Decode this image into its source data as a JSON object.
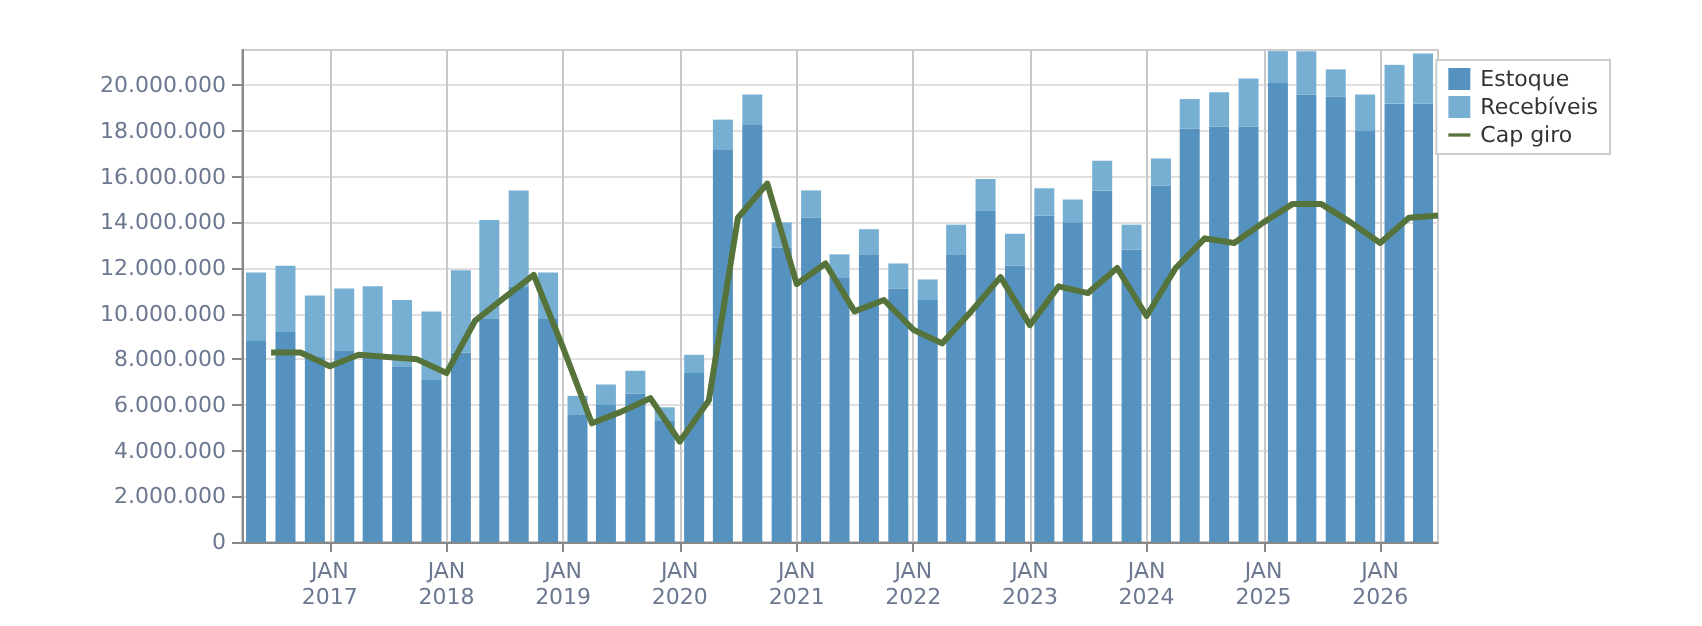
{
  "chart_data": {
    "type": "bar",
    "stacked": true,
    "x": [
      "2016-05-15",
      "2016-08-15",
      "2016-11-15",
      "2017-02-15",
      "2017-05-15",
      "2017-08-15",
      "2017-11-15",
      "2018-02-15",
      "2018-05-15",
      "2018-08-15",
      "2018-11-15",
      "2019-02-15",
      "2019-05-15",
      "2019-08-15",
      "2019-11-15",
      "2020-02-15",
      "2020-05-15",
      "2020-08-15",
      "2020-11-15",
      "2021-02-15",
      "2021-05-15",
      "2021-08-15",
      "2021-11-15",
      "2022-02-15",
      "2022-05-15",
      "2022-08-15",
      "2022-11-15",
      "2023-02-15",
      "2023-05-15",
      "2023-08-15",
      "2023-11-15",
      "2024-02-15",
      "2024-05-15",
      "2024-08-15",
      "2024-11-15",
      "2025-02-15",
      "2025-05-15",
      "2025-08-15",
      "2025-11-15",
      "2026-02-15",
      "2026-05-15"
    ],
    "series": [
      {
        "name": "Estoque",
        "color": "#5592bf",
        "values": [
          8800000,
          9200000,
          8100000,
          8400000,
          8100000,
          7700000,
          7100000,
          8300000,
          9800000,
          11200000,
          9800000,
          5600000,
          6000000,
          6500000,
          5300000,
          7400000,
          17200000,
          18300000,
          12900000,
          14200000,
          11600000,
          12600000,
          11100000,
          10600000,
          12600000,
          14500000,
          12100000,
          14300000,
          14000000,
          15400000,
          12800000,
          15600000,
          18100000,
          18200000,
          18200000,
          20100000,
          19600000,
          19500000,
          18000000,
          19200000,
          19200000
        ]
      },
      {
        "name": "Recebíveis",
        "color": "#77afd3",
        "values": [
          3000000,
          2900000,
          2700000,
          2700000,
          3100000,
          2900000,
          3000000,
          3600000,
          4300000,
          4200000,
          2000000,
          800000,
          900000,
          1000000,
          600000,
          800000,
          1300000,
          1300000,
          1100000,
          1200000,
          1000000,
          1100000,
          1100000,
          900000,
          1300000,
          1400000,
          1400000,
          1200000,
          1000000,
          1300000,
          1100000,
          1200000,
          1300000,
          1500000,
          2100000,
          1400000,
          1900000,
          1200000,
          1600000,
          1700000,
          2200000
        ]
      },
      {
        "name": "Cap giro",
        "type": "line",
        "color": "#56733b",
        "line_style": "solid",
        "marker": "none",
        "x": [
          "2016-07-01",
          "2016-10-01",
          "2017-01-01",
          "2017-04-01",
          "2017-07-01",
          "2017-10-01",
          "2018-01-01",
          "2018-04-01",
          "2018-07-01",
          "2018-10-01",
          "2019-01-01",
          "2019-04-01",
          "2019-07-01",
          "2019-10-01",
          "2020-01-01",
          "2020-04-01",
          "2020-07-01",
          "2020-10-01",
          "2021-01-01",
          "2021-04-01",
          "2021-07-01",
          "2021-10-01",
          "2022-01-01",
          "2022-04-01",
          "2022-07-01",
          "2022-10-01",
          "2023-01-01",
          "2023-04-01",
          "2023-07-01",
          "2023-10-01",
          "2024-01-01",
          "2024-04-01",
          "2024-07-01",
          "2024-10-01",
          "2025-01-01",
          "2025-04-01",
          "2025-07-01",
          "2025-10-01",
          "2026-01-01",
          "2026-04-01",
          "2026-07-01"
        ],
        "values": [
          8300000,
          8300000,
          7700000,
          8200000,
          8100000,
          8000000,
          7400000,
          9700000,
          10700000,
          11700000,
          8500000,
          5200000,
          5700000,
          6300000,
          4400000,
          6200000,
          14200000,
          15700000,
          11300000,
          12200000,
          10100000,
          10600000,
          9300000,
          8700000,
          10100000,
          11600000,
          9500000,
          11200000,
          10900000,
          12000000,
          9900000,
          12000000,
          13300000,
          13100000,
          14000000,
          14800000,
          14800000,
          14000000,
          13100000,
          14200000,
          14300000
        ]
      }
    ],
    "xlim": [
      "2016-04-01",
      "2026-07-01"
    ],
    "xticks": [
      {
        "value": "2017-01-01",
        "label": "JAN\n2017"
      },
      {
        "value": "2018-01-01",
        "label": "JAN\n2018"
      },
      {
        "value": "2019-01-01",
        "label": "JAN\n2019"
      },
      {
        "value": "2020-01-01",
        "label": "JAN\n2020"
      },
      {
        "value": "2021-01-01",
        "label": "JAN\n2021"
      },
      {
        "value": "2022-01-01",
        "label": "JAN\n2022"
      },
      {
        "value": "2023-01-01",
        "label": "JAN\n2023"
      },
      {
        "value": "2024-01-01",
        "label": "JAN\n2024"
      },
      {
        "value": "2025-01-01",
        "label": "JAN\n2025"
      },
      {
        "value": "2026-01-01",
        "label": "JAN\n2026"
      }
    ],
    "ylim": [
      0,
      21550000
    ],
    "yticks": [
      0,
      {
        "value": 2000000,
        "label": "2.000.000"
      },
      {
        "value": 4000000,
        "label": "4.000.000"
      },
      {
        "value": 6000000,
        "label": "6.000.000"
      },
      {
        "value": 8000000,
        "label": "8.000.000"
      },
      {
        "value": 10000000,
        "label": "10.000.000"
      },
      {
        "value": 12000000,
        "label": "12.000.000"
      },
      {
        "value": 14000000,
        "label": "14.000.000"
      },
      {
        "value": 16000000,
        "label": "16.000.000"
      },
      {
        "value": 18000000,
        "label": "18.000.000"
      },
      {
        "value": 20000000,
        "label": "20.000.000"
      }
    ],
    "grid": true,
    "legend": "top right"
  }
}
